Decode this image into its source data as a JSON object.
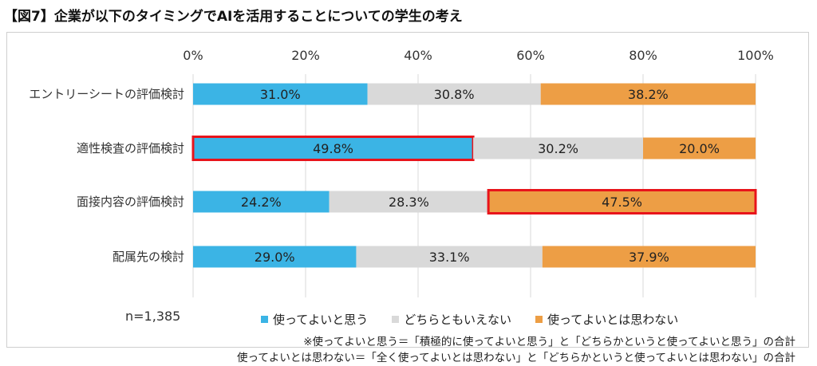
{
  "title": "【図7】企業が以下のタイミングでAIを活用することについての学生の考え",
  "n_label": "n=1,385",
  "notes": [
    "※使ってよいと思う＝「積極的に使ってよいと思う」と「どちらかというと使ってよいと思う」の合計",
    "使ってよいとは思わない＝「全く使ってよいとは思わない」と「どちらかというと使ってよいとは思わない」の合計"
  ],
  "chart_data": {
    "type": "bar",
    "orientation": "horizontal",
    "stacked": true,
    "categories": [
      "エントリーシートの評価検討",
      "適性検査の評価検討",
      "面接内容の評価検討",
      "配属先の検討"
    ],
    "series": [
      {
        "name": "使ってよいと思う",
        "color": "#3BB4E5",
        "values": [
          31.0,
          49.8,
          24.2,
          29.0
        ],
        "labels": [
          "31.0%",
          "49.8%",
          "24.2%",
          "29.0%"
        ]
      },
      {
        "name": "どちらともいえない",
        "color": "#D9D9D9",
        "values": [
          30.8,
          30.2,
          28.3,
          33.1
        ],
        "labels": [
          "30.8%",
          "30.2%",
          "28.3%",
          "33.1%"
        ]
      },
      {
        "name": "使ってよいとは思わない",
        "color": "#ED9E45",
        "values": [
          38.2,
          20.0,
          47.5,
          37.9
        ],
        "labels": [
          "38.2%",
          "20.0%",
          "47.5%",
          "37.9%"
        ]
      }
    ],
    "x_ticks": [
      "0%",
      "20%",
      "40%",
      "60%",
      "80%",
      "100%"
    ],
    "xlim": [
      0,
      100
    ],
    "highlights": [
      {
        "category": "適性検査の評価検討",
        "series": "使ってよいと思う",
        "color": "#E8141B"
      },
      {
        "category": "面接内容の評価検討",
        "series": "使ってよいとは思わない",
        "color": "#E8141B"
      }
    ],
    "legend_position": "bottom",
    "grid": true
  }
}
